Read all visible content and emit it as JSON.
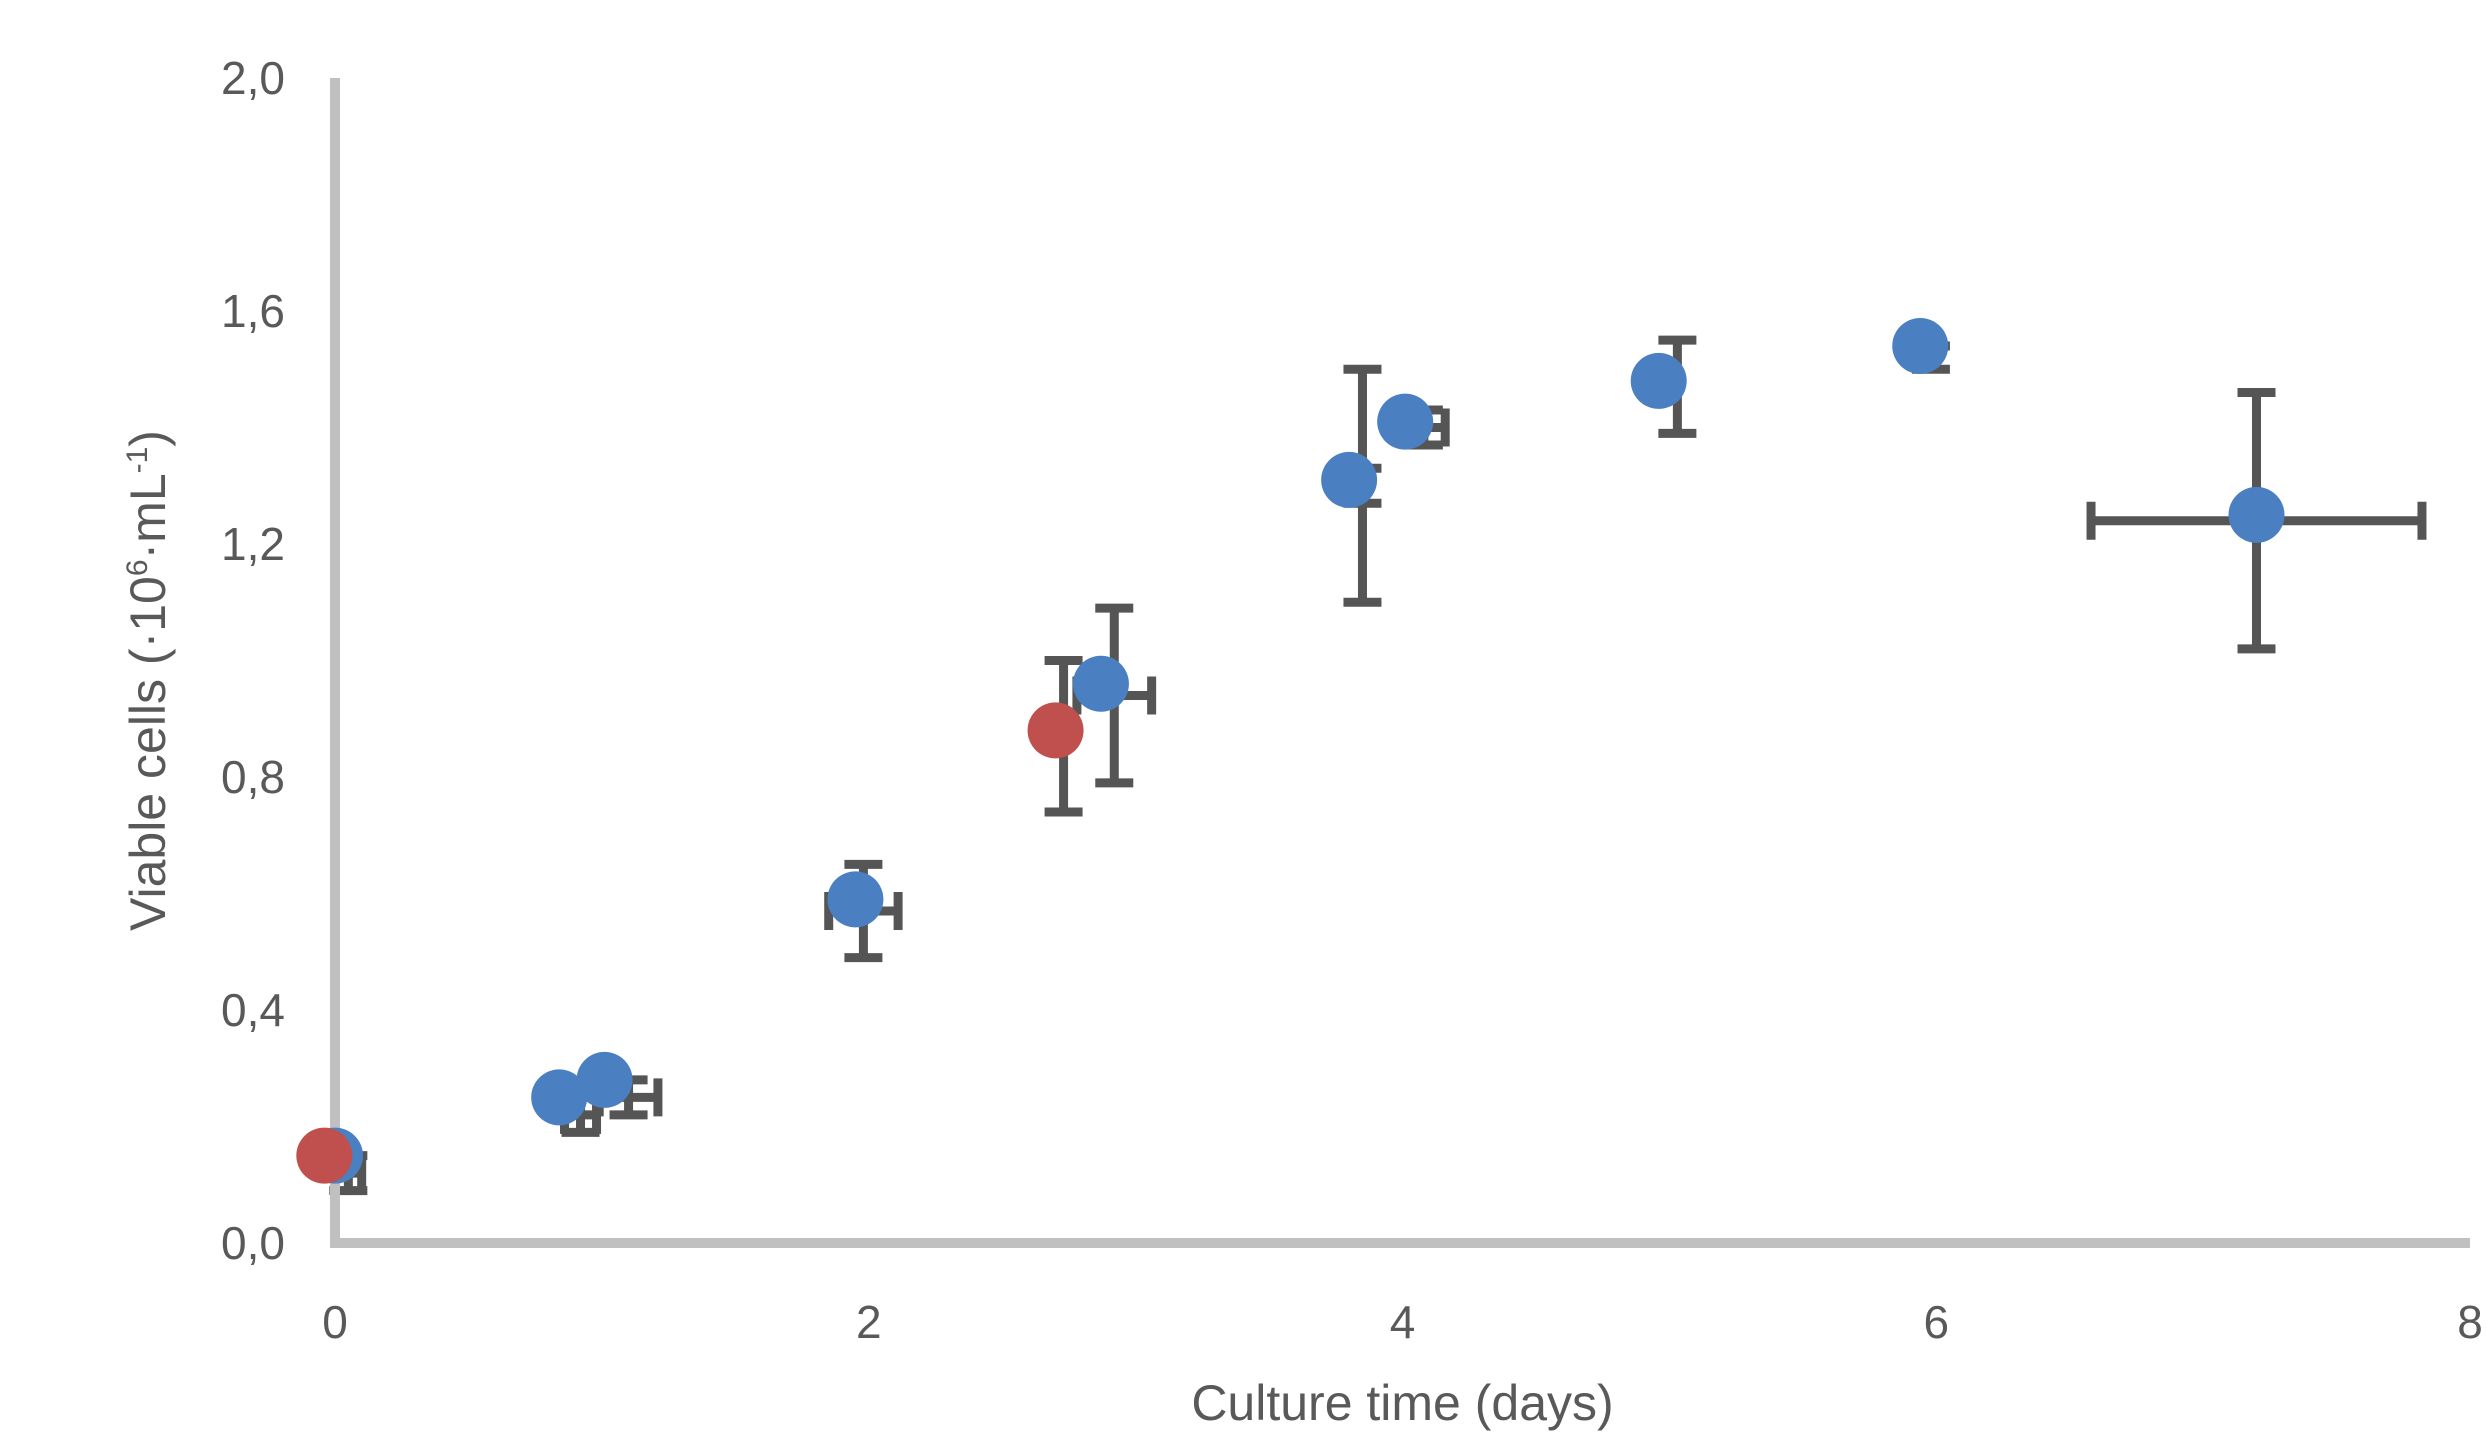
{
  "chart_data": {
    "type": "scatter",
    "title": "",
    "xlabel": "Culture time (days)",
    "ylabel": {
      "prefix": "Viable cells (·10",
      "sup1": "6",
      "middle": "·mL",
      "sup2": "-1",
      "suffix": ")"
    },
    "xlim": [
      0,
      8
    ],
    "ylim": [
      0,
      2
    ],
    "x_ticks": [
      0,
      2,
      4,
      6,
      8
    ],
    "x_tick_labels": [
      "0",
      "2",
      "4",
      "6",
      "8"
    ],
    "y_ticks": [
      0,
      0.4,
      0.8,
      1.2,
      1.6,
      2.0
    ],
    "y_tick_labels": [
      "0,0",
      "0,4",
      "0,8",
      "1,2",
      "1,6",
      "2,0"
    ],
    "grid": false,
    "legend": "none",
    "colors": {
      "series_blue": "#4a7fc1",
      "series_red": "#c0504d",
      "error_bar": "#555555",
      "axis": "#c0c0c0"
    },
    "series": [
      {
        "color": "#4a7fc1",
        "points": [
          {
            "x": 0.0,
            "y": 0.15
          },
          {
            "x": 0.84,
            "y": 0.25
          },
          {
            "x": 1.01,
            "y": 0.28
          },
          {
            "x": 1.95,
            "y": 0.59
          },
          {
            "x": 2.87,
            "y": 0.96
          },
          {
            "x": 3.8,
            "y": 1.31
          },
          {
            "x": 4.01,
            "y": 1.41
          },
          {
            "x": 4.96,
            "y": 1.48
          },
          {
            "x": 5.94,
            "y": 1.54
          },
          {
            "x": 7.2,
            "y": 1.25
          }
        ]
      },
      {
        "color": "#c0504d",
        "points": [
          {
            "x": -0.04,
            "y": 0.15
          },
          {
            "x": 2.7,
            "y": 0.88
          }
        ]
      }
    ],
    "error_bars": [
      {
        "x": 0.05,
        "y": 0.12,
        "xerr": 0.05,
        "yerr": 0.03
      },
      {
        "x": 0.92,
        "y": 0.22,
        "xerr": 0.06,
        "yerr": 0.03
      },
      {
        "x": 1.1,
        "y": 0.25,
        "xerr": 0.11,
        "yerr": 0.03
      },
      {
        "x": 1.98,
        "y": 0.57,
        "xerr": 0.13,
        "yerr": 0.08
      },
      {
        "x": 2.73,
        "y": 0.87,
        "xerr": 0.0,
        "yerr": 0.13
      },
      {
        "x": 2.92,
        "y": 0.94,
        "xerr": 0.14,
        "yerr": 0.15
      },
      {
        "x": 3.85,
        "y": 1.3,
        "xerr": 0.0,
        "yerr": 0.2
      },
      {
        "x": 3.85,
        "y": 1.3,
        "xerr": 0.0,
        "yerr": 0.03
      },
      {
        "x": 4.08,
        "y": 1.4,
        "xerr": 0.08,
        "yerr": 0.03
      },
      {
        "x": 5.03,
        "y": 1.47,
        "xerr": 0.0,
        "yerr": 0.08
      },
      {
        "x": 5.98,
        "y": 1.52,
        "xerr": 0.0,
        "yerr": 0.02
      },
      {
        "x": 7.2,
        "y": 1.24,
        "xerr": 0.62,
        "yerr": 0.22
      }
    ]
  }
}
